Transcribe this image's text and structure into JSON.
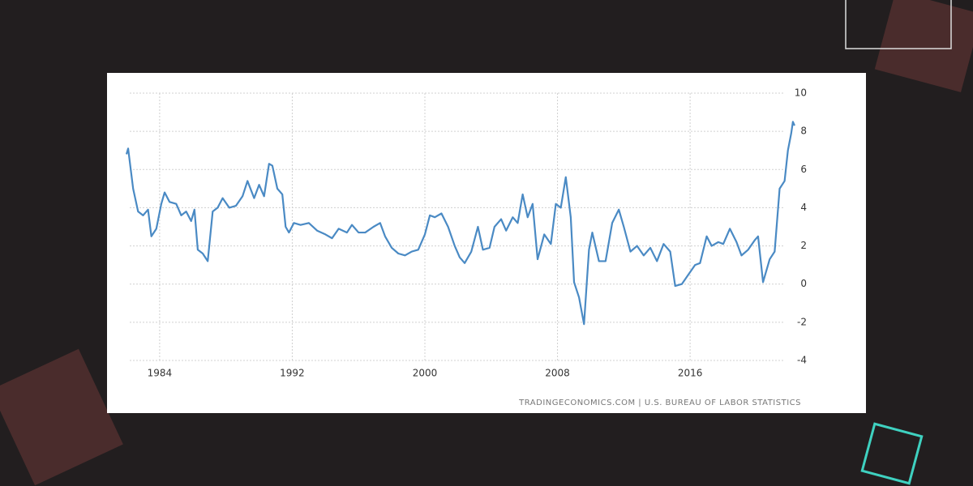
{
  "chart_data": {
    "type": "line",
    "source": "TRADINGECONOMICS.COM | U.S. BUREAU OF LABOR STATISTICS",
    "xlim": [
      1982,
      2022.5
    ],
    "xticks": [
      1984,
      1992,
      2000,
      2008,
      2016
    ],
    "ylim": [
      -4,
      10
    ],
    "yticks": [
      -4,
      -2,
      0,
      2,
      4,
      6,
      8,
      10
    ],
    "grid": true,
    "x": [
      1982.0,
      1982.1,
      1982.4,
      1982.7,
      1983.0,
      1983.3,
      1983.5,
      1983.8,
      1984.1,
      1984.3,
      1984.6,
      1985.0,
      1985.3,
      1985.6,
      1985.9,
      1986.1,
      1986.3,
      1986.6,
      1986.9,
      1987.2,
      1987.5,
      1987.8,
      1988.2,
      1988.6,
      1989.0,
      1989.3,
      1989.7,
      1990.0,
      1990.3,
      1990.6,
      1990.8,
      1991.1,
      1991.4,
      1991.6,
      1991.8,
      1992.1,
      1992.5,
      1993.0,
      1993.5,
      1994.0,
      1994.4,
      1994.8,
      1995.3,
      1995.6,
      1996.0,
      1996.4,
      1996.9,
      1997.3,
      1997.6,
      1998.0,
      1998.4,
      1998.8,
      1999.2,
      1999.6,
      2000.0,
      2000.3,
      2000.6,
      2001.0,
      2001.4,
      2001.8,
      2002.1,
      2002.4,
      2002.8,
      2003.2,
      2003.5,
      2003.9,
      2004.2,
      2004.6,
      2004.9,
      2005.3,
      2005.6,
      2005.9,
      2006.2,
      2006.5,
      2006.8,
      2007.2,
      2007.6,
      2007.9,
      2008.2,
      2008.5,
      2008.8,
      2009.0,
      2009.3,
      2009.6,
      2009.9,
      2010.1,
      2010.5,
      2010.9,
      2011.3,
      2011.7,
      2012.0,
      2012.4,
      2012.8,
      2013.2,
      2013.6,
      2014.0,
      2014.4,
      2014.8,
      2015.1,
      2015.5,
      2015.9,
      2016.3,
      2016.6,
      2017.0,
      2017.3,
      2017.7,
      2018.0,
      2018.4,
      2018.8,
      2019.1,
      2019.5,
      2019.9,
      2020.1,
      2020.4,
      2020.8,
      2021.1,
      2021.4,
      2021.7,
      2021.9,
      2022.1,
      2022.2,
      2022.3
    ],
    "series": [
      {
        "color": "#4a8ac4",
        "values": [
          6.8,
          7.1,
          5.0,
          3.8,
          3.6,
          3.9,
          2.5,
          2.9,
          4.2,
          4.8,
          4.3,
          4.2,
          3.6,
          3.8,
          3.3,
          3.9,
          1.8,
          1.6,
          1.2,
          3.8,
          4.0,
          4.5,
          4.0,
          4.1,
          4.6,
          5.4,
          4.5,
          5.2,
          4.6,
          6.3,
          6.2,
          5.0,
          4.7,
          3.0,
          2.7,
          3.2,
          3.1,
          3.2,
          2.8,
          2.6,
          2.4,
          2.9,
          2.7,
          3.1,
          2.7,
          2.7,
          3.0,
          3.2,
          2.5,
          1.9,
          1.6,
          1.5,
          1.7,
          1.8,
          2.6,
          3.6,
          3.5,
          3.7,
          3.0,
          2.0,
          1.4,
          1.1,
          1.7,
          3.0,
          1.8,
          1.9,
          3.0,
          3.4,
          2.8,
          3.5,
          3.2,
          4.7,
          3.5,
          4.2,
          1.3,
          2.6,
          2.1,
          4.2,
          4.0,
          5.6,
          3.5,
          0.1,
          -0.7,
          -2.1,
          1.8,
          2.7,
          1.2,
          1.2,
          3.2,
          3.9,
          3.0,
          1.7,
          2.0,
          1.5,
          1.9,
          1.2,
          2.1,
          1.7,
          -0.1,
          0.0,
          0.5,
          1.0,
          1.1,
          2.5,
          2.0,
          2.2,
          2.1,
          2.9,
          2.2,
          1.5,
          1.8,
          2.3,
          2.5,
          0.1,
          1.3,
          1.7,
          5.0,
          5.4,
          7.0,
          7.9,
          8.5,
          8.3
        ]
      }
    ]
  }
}
